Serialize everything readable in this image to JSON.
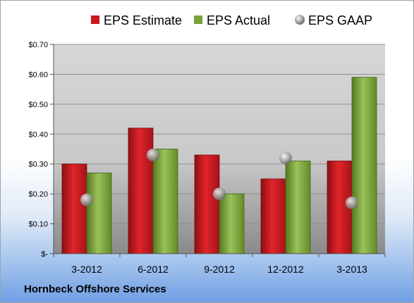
{
  "company": "Hornbeck Offshore Services",
  "chart_data": {
    "type": "bar",
    "categories": [
      "3-2012",
      "6-2012",
      "9-2012",
      "12-2012",
      "3-2013"
    ],
    "series": [
      {
        "name": "EPS Estimate",
        "kind": "bar",
        "color": "#c8171e",
        "values": [
          0.3,
          0.42,
          0.33,
          0.25,
          0.31
        ]
      },
      {
        "name": "EPS Actual",
        "kind": "bar",
        "color": "#7aa23a",
        "values": [
          0.27,
          0.35,
          0.2,
          0.31,
          0.59
        ]
      },
      {
        "name": "EPS GAAP",
        "kind": "marker",
        "color": "#a9a9a9",
        "values": [
          0.18,
          0.33,
          0.2,
          0.32,
          0.17
        ]
      }
    ],
    "ylim": [
      0,
      0.7
    ],
    "yticks": [
      0,
      0.1,
      0.2,
      0.3,
      0.4,
      0.5,
      0.6,
      0.7
    ],
    "ytick_labels": [
      "$-",
      "$0.10",
      "$0.20",
      "$0.30",
      "$0.40",
      "$0.50",
      "$0.60",
      "$0.70"
    ],
    "legend_position": "top",
    "grid": true
  }
}
